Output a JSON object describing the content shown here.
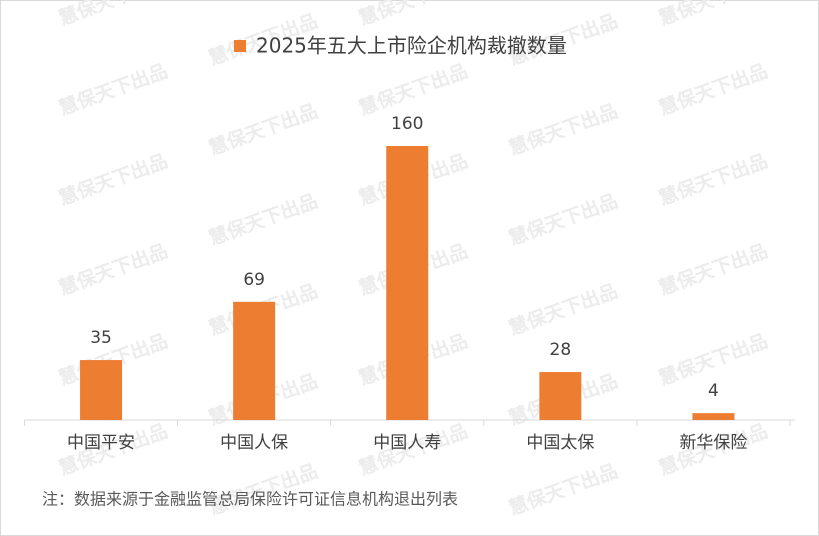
{
  "chart_data": {
    "type": "bar",
    "categories": [
      "中国平安",
      "中国人保",
      "中国人寿",
      "中国太保",
      "新华保险"
    ],
    "series": [
      {
        "name": "2025年五大上市险企机构裁撤数量",
        "color": "#ed7d31",
        "values": [
          35,
          69,
          160,
          28,
          4
        ]
      }
    ],
    "data_labels": true,
    "legend": "top",
    "note": "注：数据来源于金融监管总局保险许可证信息机构退出列表",
    "watermark": "慧保天下出品"
  }
}
